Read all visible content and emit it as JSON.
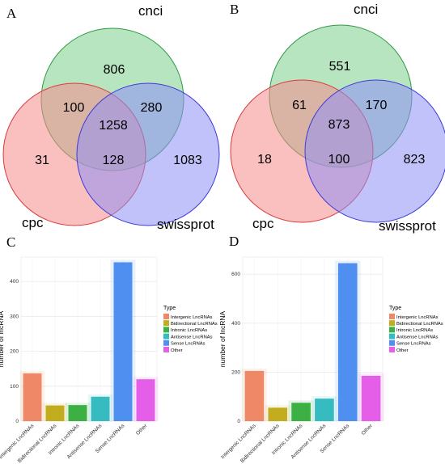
{
  "chart_data": [
    {
      "type": "venn",
      "panel": "A",
      "sets": [
        "cnci",
        "cpc",
        "swissprot"
      ],
      "regions": [
        {
          "key": "cnci_only",
          "value": "806"
        },
        {
          "key": "cnci_cpc",
          "value": "100"
        },
        {
          "key": "cnci_swissprot",
          "value": "280"
        },
        {
          "key": "all",
          "value": "1258"
        },
        {
          "key": "cpc_only",
          "value": "31"
        },
        {
          "key": "cpc_swissprot",
          "value": "128"
        },
        {
          "key": "swissprot_only",
          "value": "1083"
        }
      ],
      "colors": {
        "cnci": "#7ccf8c",
        "cpc": "#f58a8a",
        "swissprot": "#8f8ff5"
      }
    },
    {
      "type": "venn",
      "panel": "B",
      "sets": [
        "cnci",
        "cpc",
        "swissprot"
      ],
      "regions": [
        {
          "key": "cnci_only",
          "value": "551"
        },
        {
          "key": "cnci_cpc",
          "value": "61"
        },
        {
          "key": "cnci_swissprot",
          "value": "170"
        },
        {
          "key": "all",
          "value": "873"
        },
        {
          "key": "cpc_only",
          "value": "18"
        },
        {
          "key": "cpc_swissprot",
          "value": "100"
        },
        {
          "key": "swissprot_only",
          "value": "823"
        }
      ],
      "colors": {
        "cnci": "#7ccf8c",
        "cpc": "#f58a8a",
        "swissprot": "#8f8ff5"
      }
    },
    {
      "type": "bar",
      "panel": "C",
      "categories": [
        "Intergenic LncRNAs",
        "Bidirectional LncRNAs",
        "Intronic LncRNAs",
        "Antisense LncRNAs",
        "Sense LncRNAs",
        "Other"
      ],
      "values": [
        137,
        45,
        46,
        70,
        455,
        120
      ],
      "ylabel": "number of lncRNA",
      "ylim": [
        0,
        470
      ],
      "yticks": [
        0,
        100,
        200,
        300,
        400
      ],
      "legend_title": "Type",
      "legend_position": "right",
      "grid": true,
      "colors": [
        "#ee8866",
        "#c2ad1f",
        "#3cb043",
        "#36bcc0",
        "#4e8ff0",
        "#e45ee8"
      ]
    },
    {
      "type": "bar",
      "panel": "D",
      "categories": [
        "Intergenic LncRNAs",
        "Bidirectional LncRNAs",
        "Intronic LncRNAs",
        "Antisense LncRNAs",
        "Sense LncRNAs",
        "Other"
      ],
      "values": [
        205,
        55,
        75,
        92,
        645,
        185
      ],
      "ylabel": "number of lncRNA",
      "ylim": [
        0,
        670
      ],
      "yticks": [
        0,
        200,
        400,
        600
      ],
      "legend_title": "Type",
      "legend_position": "right",
      "grid": true,
      "colors": [
        "#ee8866",
        "#c2ad1f",
        "#3cb043",
        "#36bcc0",
        "#4e8ff0",
        "#e45ee8"
      ]
    }
  ]
}
